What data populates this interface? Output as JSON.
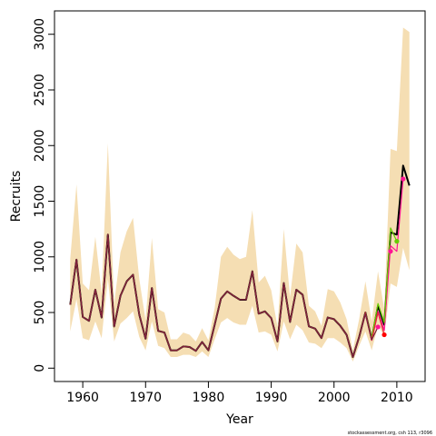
{
  "chart_data": {
    "type": "line",
    "xlabel": "Year",
    "ylabel": "Recruits",
    "xlim": [
      1955.5,
      2014.5
    ],
    "ylim": [
      -120,
      3210
    ],
    "x_ticks": [
      1960,
      1970,
      1980,
      1990,
      2000,
      2010
    ],
    "y_ticks": [
      0,
      500,
      1000,
      1500,
      2000,
      2500,
      3000
    ],
    "grid": false,
    "legend": "none",
    "band_color": "#f5deb3",
    "band": {
      "x": [
        1958,
        1959,
        1960,
        1961,
        1962,
        1963,
        1964,
        1965,
        1966,
        1967,
        1968,
        1969,
        1970,
        1971,
        1972,
        1973,
        1974,
        1975,
        1976,
        1977,
        1978,
        1979,
        1980,
        1981,
        1982,
        1983,
        1984,
        1985,
        1986,
        1987,
        1988,
        1989,
        1990,
        1991,
        1992,
        1993,
        1994,
        1995,
        1996,
        1997,
        1998,
        1999,
        2000,
        2001,
        2002,
        2003,
        2004,
        2005,
        2006,
        2007,
        2008,
        2009,
        2010,
        2011,
        2012
      ],
      "lower": [
        330,
        620,
        270,
        250,
        420,
        270,
        800,
        240,
        400,
        450,
        510,
        280,
        160,
        420,
        200,
        180,
        100,
        100,
        120,
        120,
        100,
        150,
        100,
        260,
        410,
        450,
        410,
        390,
        390,
        560,
        320,
        330,
        300,
        150,
        420,
        260,
        390,
        340,
        230,
        220,
        180,
        270,
        270,
        230,
        180,
        60,
        200,
        330,
        160,
        380,
        290,
        760,
        730,
        1080,
        880
      ],
      "upper": [
        980,
        1650,
        760,
        700,
        1180,
        680,
        2020,
        580,
        1040,
        1230,
        1350,
        800,
        430,
        1170,
        530,
        500,
        260,
        260,
        320,
        300,
        240,
        360,
        250,
        540,
        1000,
        1090,
        1020,
        980,
        1000,
        1420,
        770,
        830,
        700,
        370,
        1250,
        640,
        1120,
        1040,
        560,
        510,
        380,
        710,
        690,
        590,
        440,
        160,
        440,
        780,
        420,
        870,
        530,
        1970,
        1950,
        3060,
        3020
      ]
    },
    "series": [
      {
        "color": "#000000",
        "x": [
          1958,
          1959,
          1960,
          1961,
          1962,
          1963,
          1964,
          1965,
          1966,
          1967,
          1968,
          1969,
          1970,
          1971,
          1972,
          1973,
          1974,
          1975,
          1976,
          1977,
          1978,
          1979,
          1980,
          1981,
          1982,
          1983,
          1984,
          1985,
          1986,
          1987,
          1988,
          1989,
          1990,
          1991,
          1992,
          1993,
          1994,
          1995,
          1996,
          1997,
          1998,
          1999,
          2000,
          2001,
          2002,
          2003,
          2004,
          2005,
          2006,
          2007,
          2008,
          2009,
          2010,
          2011,
          2012
        ],
        "values": [
          570,
          975,
          460,
          425,
          705,
          455,
          1200,
          375,
          650,
          780,
          840,
          480,
          265,
          720,
          335,
          320,
          160,
          160,
          195,
          190,
          155,
          235,
          160,
          390,
          625,
          690,
          650,
          615,
          615,
          870,
          490,
          510,
          450,
          240,
          765,
          415,
          705,
          660,
          375,
          355,
          270,
          455,
          440,
          380,
          300,
          100,
          280,
          500,
          260,
          560,
          390,
          1220,
          1200,
          1820,
          1640
        ]
      },
      {
        "color": "#ff1493",
        "x": [
          1958,
          1959,
          1960,
          1961,
          1962,
          1963,
          1964,
          1965,
          1966,
          1967,
          1968,
          1969,
          1970,
          1971,
          1972,
          1973,
          1974,
          1975,
          1976,
          1977,
          1978,
          1979,
          1980,
          1981,
          1982,
          1983,
          1984,
          1985,
          1986,
          1987,
          1988,
          1989,
          1990,
          1991,
          1992,
          1993,
          1994,
          1995,
          1996,
          1997,
          1998,
          1999,
          2000,
          2001,
          2002,
          2003,
          2004,
          2005,
          2006,
          2007,
          2008,
          2009,
          2010,
          2011
        ],
        "values": [
          570,
          975,
          460,
          425,
          705,
          455,
          1200,
          375,
          650,
          780,
          840,
          480,
          265,
          720,
          335,
          320,
          160,
          160,
          195,
          190,
          155,
          235,
          160,
          390,
          625,
          690,
          650,
          615,
          615,
          870,
          490,
          510,
          450,
          240,
          765,
          415,
          705,
          660,
          375,
          355,
          270,
          455,
          440,
          380,
          300,
          100,
          280,
          490,
          250,
          510,
          340,
          1100,
          1050,
          1700
        ]
      },
      {
        "color": "#66cc00",
        "x": [
          1958,
          1959,
          1960,
          1961,
          1962,
          1963,
          1964,
          1965,
          1966,
          1967,
          1968,
          1969,
          1970,
          1971,
          1972,
          1973,
          1974,
          1975,
          1976,
          1977,
          1978,
          1979,
          1980,
          1981,
          1982,
          1983,
          1984,
          1985,
          1986,
          1987,
          1988,
          1989,
          1990,
          1991,
          1992,
          1993,
          1994,
          1995,
          1996,
          1997,
          1998,
          1999,
          2000,
          2001,
          2002,
          2003,
          2004,
          2005,
          2006,
          2007,
          2008,
          2009,
          2010
        ],
        "values": [
          570,
          975,
          460,
          425,
          705,
          455,
          1200,
          375,
          650,
          780,
          840,
          480,
          265,
          720,
          335,
          320,
          160,
          160,
          195,
          190,
          155,
          235,
          160,
          390,
          625,
          690,
          650,
          615,
          615,
          870,
          490,
          510,
          450,
          240,
          765,
          415,
          705,
          660,
          375,
          355,
          270,
          455,
          440,
          380,
          300,
          100,
          280,
          500,
          270,
          580,
          410,
          1260,
          1140
        ]
      },
      {
        "color": "#e8203a",
        "x": [
          1958,
          1959,
          1960,
          1961,
          1962,
          1963,
          1964,
          1965,
          1966,
          1967,
          1968,
          1969,
          1970,
          1971,
          1972,
          1973,
          1974,
          1975,
          1976,
          1977,
          1978,
          1979,
          1980,
          1981,
          1982,
          1983,
          1984,
          1985,
          1986,
          1987,
          1988,
          1989,
          1990,
          1991,
          1992,
          1993,
          1994,
          1995,
          1996,
          1997,
          1998,
          1999,
          2000,
          2001,
          2002,
          2003,
          2004,
          2005,
          2006,
          2007,
          2008
        ],
        "values": [
          570,
          975,
          460,
          425,
          705,
          455,
          1200,
          375,
          650,
          780,
          840,
          480,
          265,
          720,
          335,
          320,
          160,
          160,
          195,
          190,
          155,
          235,
          160,
          390,
          625,
          690,
          650,
          615,
          615,
          870,
          490,
          510,
          450,
          240,
          765,
          415,
          705,
          660,
          375,
          355,
          270,
          455,
          440,
          380,
          300,
          100,
          280,
          500,
          250,
          500,
          300
        ]
      },
      {
        "color": "#7a1f3d",
        "x": [
          1958,
          1959,
          1960,
          1961,
          1962,
          1963,
          1964,
          1965,
          1966,
          1967,
          1968,
          1969,
          1970,
          1971,
          1972,
          1973,
          1974,
          1975,
          1976,
          1977,
          1978,
          1979,
          1980,
          1981,
          1982,
          1983,
          1984,
          1985,
          1986,
          1987,
          1988,
          1989,
          1990,
          1991,
          1992,
          1993,
          1994,
          1995,
          1996,
          1997,
          1998,
          1999,
          2000,
          2001,
          2002,
          2003,
          2004,
          2005,
          2006,
          2007
        ],
        "values": [
          570,
          975,
          460,
          425,
          705,
          455,
          1200,
          375,
          650,
          780,
          840,
          480,
          265,
          720,
          335,
          320,
          160,
          160,
          195,
          190,
          155,
          235,
          160,
          390,
          625,
          690,
          650,
          615,
          615,
          870,
          490,
          510,
          450,
          240,
          765,
          415,
          705,
          660,
          375,
          355,
          270,
          455,
          440,
          380,
          300,
          100,
          280,
          490,
          255,
          370
        ]
      }
    ],
    "points": [
      {
        "x": 2007,
        "y": 370,
        "color": "#ff1493"
      },
      {
        "x": 2008,
        "y": 300,
        "color": "#ff0000"
      },
      {
        "x": 2009,
        "y": 1050,
        "color": "#ff1493"
      },
      {
        "x": 2010,
        "y": 1140,
        "color": "#66cc00"
      },
      {
        "x": 2011,
        "y": 1700,
        "color": "#ff1493"
      }
    ]
  },
  "watermark": "stockassessment.org, csh 113, r3096"
}
